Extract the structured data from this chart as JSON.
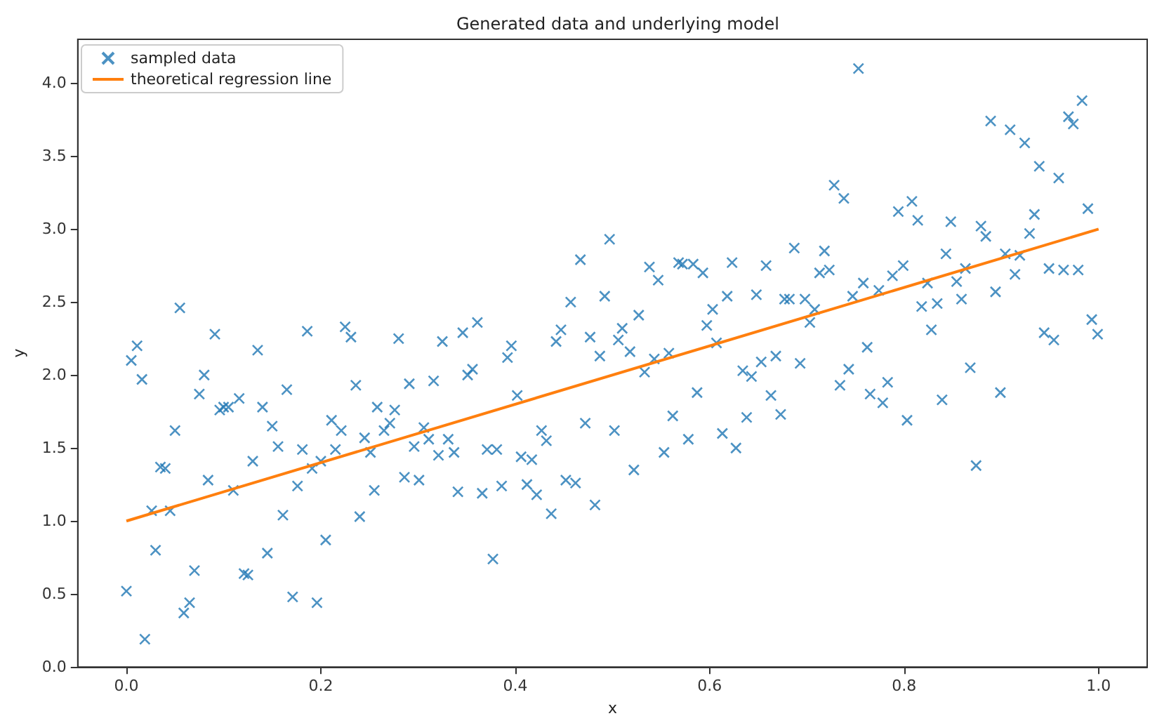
{
  "chart_data": {
    "type": "scatter",
    "title": "Generated data and underlying model",
    "xlabel": "x",
    "ylabel": "y",
    "xlim": [
      -0.05,
      1.05
    ],
    "ylim": [
      0,
      4.3
    ],
    "xticks": [
      {
        "value": 0,
        "label": "0.0"
      },
      {
        "value": 0.2,
        "label": "0.2"
      },
      {
        "value": 0.4,
        "label": "0.4"
      },
      {
        "value": 0.6,
        "label": "0.6"
      },
      {
        "value": 0.8,
        "label": "0.8"
      },
      {
        "value": 1,
        "label": "1.0"
      }
    ],
    "yticks": [
      {
        "value": 0,
        "label": "0.0"
      },
      {
        "value": 0.5,
        "label": "0.5"
      },
      {
        "value": 1,
        "label": "1.0"
      },
      {
        "value": 1.5,
        "label": "1.5"
      },
      {
        "value": 2,
        "label": "2.0"
      },
      {
        "value": 2.5,
        "label": "2.5"
      },
      {
        "value": 3,
        "label": "3.0"
      },
      {
        "value": 3.5,
        "label": "3.5"
      },
      {
        "value": 4,
        "label": "4.0"
      }
    ],
    "grid": false,
    "legend": "top left",
    "series": [
      {
        "name": "sampled data",
        "marker": "cross",
        "color": "#1f77b4",
        "x": [
          0.0,
          0.005,
          0.011,
          0.016,
          0.019,
          0.026,
          0.03,
          0.035,
          0.04,
          0.045,
          0.05,
          0.055,
          0.059,
          0.065,
          0.07,
          0.075,
          0.08,
          0.084,
          0.091,
          0.096,
          0.1,
          0.105,
          0.11,
          0.116,
          0.121,
          0.125,
          0.13,
          0.135,
          0.14,
          0.145,
          0.15,
          0.156,
          0.161,
          0.165,
          0.171,
          0.176,
          0.181,
          0.186,
          0.191,
          0.196,
          0.2,
          0.205,
          0.211,
          0.215,
          0.221,
          0.225,
          0.231,
          0.236,
          0.24,
          0.245,
          0.251,
          0.255,
          0.258,
          0.265,
          0.271,
          0.276,
          0.28,
          0.286,
          0.291,
          0.296,
          0.301,
          0.306,
          0.311,
          0.316,
          0.321,
          0.325,
          0.331,
          0.337,
          0.341,
          0.346,
          0.351,
          0.356,
          0.361,
          0.366,
          0.371,
          0.377,
          0.381,
          0.386,
          0.392,
          0.396,
          0.402,
          0.406,
          0.412,
          0.417,
          0.422,
          0.427,
          0.432,
          0.437,
          0.442,
          0.447,
          0.452,
          0.457,
          0.462,
          0.467,
          0.472,
          0.477,
          0.482,
          0.487,
          0.492,
          0.497,
          0.502,
          0.506,
          0.51,
          0.518,
          0.522,
          0.527,
          0.533,
          0.538,
          0.543,
          0.547,
          0.553,
          0.558,
          0.562,
          0.568,
          0.572,
          0.578,
          0.583,
          0.587,
          0.593,
          0.597,
          0.603,
          0.607,
          0.613,
          0.618,
          0.623,
          0.627,
          0.634,
          0.638,
          0.643,
          0.648,
          0.653,
          0.658,
          0.663,
          0.668,
          0.673,
          0.677,
          0.682,
          0.687,
          0.693,
          0.698,
          0.703,
          0.708,
          0.713,
          0.718,
          0.723,
          0.728,
          0.734,
          0.738,
          0.743,
          0.747,
          0.753,
          0.758,
          0.762,
          0.765,
          0.774,
          0.778,
          0.783,
          0.788,
          0.794,
          0.799,
          0.803,
          0.808,
          0.814,
          0.818,
          0.824,
          0.828,
          0.834,
          0.839,
          0.843,
          0.848,
          0.854,
          0.859,
          0.863,
          0.868,
          0.874,
          0.879,
          0.884,
          0.889,
          0.894,
          0.899,
          0.904,
          0.909,
          0.914,
          0.919,
          0.924,
          0.929,
          0.934,
          0.939,
          0.944,
          0.949,
          0.954,
          0.959,
          0.964,
          0.969,
          0.974,
          0.979,
          0.983,
          0.989,
          0.993,
          0.999
        ],
        "values": [
          0.52,
          2.1,
          2.2,
          1.97,
          0.19,
          1.07,
          0.8,
          1.37,
          1.36,
          1.07,
          1.62,
          2.46,
          0.37,
          0.44,
          0.66,
          1.87,
          2.0,
          1.28,
          2.28,
          1.76,
          1.78,
          1.78,
          1.21,
          1.84,
          0.64,
          0.63,
          1.41,
          2.17,
          1.78,
          0.78,
          1.65,
          1.51,
          1.04,
          1.9,
          0.48,
          1.24,
          1.49,
          2.3,
          1.36,
          0.44,
          1.41,
          0.87,
          1.69,
          1.49,
          1.62,
          2.33,
          2.26,
          1.93,
          1.03,
          1.57,
          1.47,
          1.21,
          1.78,
          1.62,
          1.67,
          1.76,
          2.25,
          1.3,
          1.94,
          1.51,
          1.28,
          1.64,
          1.56,
          1.96,
          1.45,
          2.23,
          1.56,
          1.47,
          1.2,
          2.29,
          2.0,
          2.04,
          2.36,
          1.19,
          1.49,
          0.74,
          1.49,
          1.24,
          2.12,
          2.2,
          1.86,
          1.44,
          1.25,
          1.42,
          1.18,
          1.62,
          1.55,
          1.05,
          2.23,
          2.31,
          1.28,
          2.5,
          1.26,
          2.79,
          1.67,
          2.26,
          1.11,
          2.13,
          2.54,
          2.93,
          1.62,
          2.24,
          2.32,
          2.16,
          1.35,
          2.41,
          2.02,
          2.74,
          2.11,
          2.65,
          1.47,
          2.15,
          1.72,
          2.77,
          2.76,
          1.56,
          2.76,
          1.88,
          2.7,
          2.34,
          2.45,
          2.22,
          1.6,
          2.54,
          2.77,
          1.5,
          2.03,
          1.71,
          1.99,
          2.55,
          2.09,
          2.75,
          1.86,
          2.13,
          1.73,
          2.52,
          2.52,
          2.87,
          2.08,
          2.52,
          2.36,
          2.45,
          2.7,
          2.85,
          2.72,
          3.3,
          1.93,
          3.21,
          2.04,
          2.54,
          4.1,
          2.63,
          2.19,
          1.87,
          2.58,
          1.81,
          1.95,
          2.68,
          3.12,
          2.75,
          1.69,
          3.19,
          3.06,
          2.47,
          2.63,
          2.31,
          2.49,
          1.83,
          2.83,
          3.05,
          2.64,
          2.52,
          2.73,
          2.05,
          1.38,
          3.02,
          2.95,
          3.74,
          2.57,
          1.88,
          2.83,
          3.68,
          2.69,
          2.82,
          3.59,
          2.97,
          3.1,
          3.43,
          2.29,
          2.73,
          2.24,
          3.35,
          2.72,
          3.77,
          3.72,
          2.72,
          3.88,
          3.14,
          2.38,
          2.28
        ]
      },
      {
        "name": "theoretical regression line",
        "type": "line",
        "color": "#ff7f0e",
        "x": [
          0,
          1
        ],
        "values": [
          1,
          3
        ]
      }
    ]
  }
}
